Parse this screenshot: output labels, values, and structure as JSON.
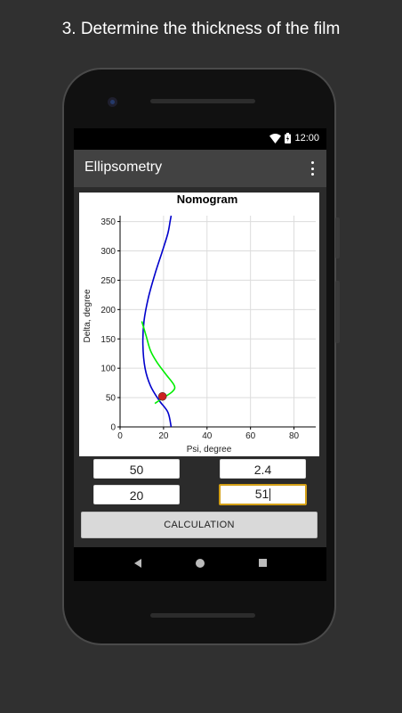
{
  "caption": "3. Determine the thickness of the film",
  "status": {
    "time": "12:00"
  },
  "app": {
    "title": "Ellipsometry"
  },
  "inputs": {
    "field1": "50",
    "field2": "2.4",
    "field3": "20",
    "field4": "51"
  },
  "button": {
    "calculation": "CALCULATION"
  },
  "colors": {
    "curve1": "#0000cc",
    "curve2": "#00ee00",
    "marker": "#cc2222"
  },
  "chart_data": {
    "type": "line",
    "title": "Nomogram",
    "xlabel": "Psi, degree",
    "ylabel": "Delta, degree",
    "xlim": [
      0,
      90
    ],
    "ylim": [
      0,
      360
    ],
    "xticks": [
      0,
      20,
      40,
      60,
      80
    ],
    "yticks": [
      0,
      50,
      100,
      150,
      200,
      250,
      300,
      350
    ],
    "grid": true,
    "series": [
      {
        "color": "#0000cc",
        "x": [
          23.5,
          22,
          18,
          14,
          11.5,
          10.5,
          11,
          13,
          16,
          19.5,
          22,
          23,
          23.5
        ],
        "y": [
          0,
          25,
          45,
          70,
          100,
          140,
          180,
          220,
          260,
          300,
          330,
          350,
          360
        ]
      },
      {
        "color": "#00ee00",
        "x": [
          16,
          20,
          24,
          25,
          21,
          17,
          14,
          12,
          10
        ],
        "y": [
          40,
          50,
          60,
          70,
          90,
          110,
          130,
          155,
          180
        ]
      }
    ],
    "marker": {
      "x": 19.5,
      "y": 52
    }
  }
}
